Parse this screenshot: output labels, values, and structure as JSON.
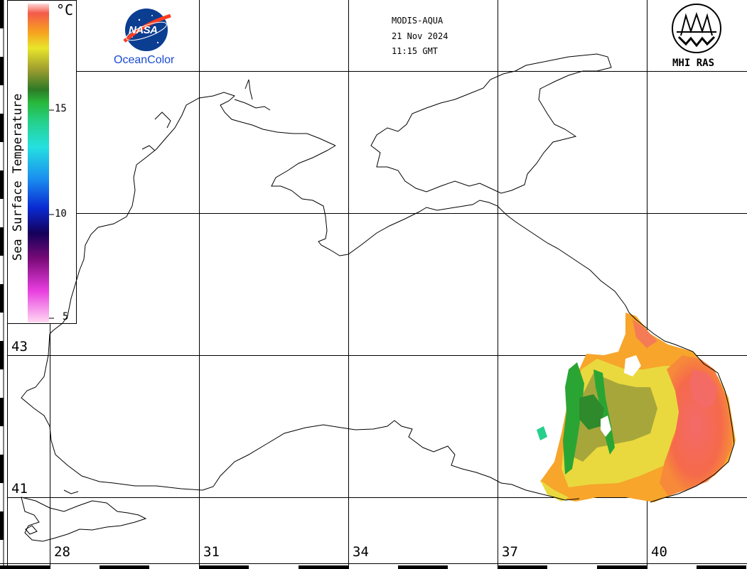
{
  "header": {
    "sensor": "MODIS-AQUA",
    "date": "21 Nov 2024",
    "time": "11:15 GMT"
  },
  "logos": {
    "nasa_word": "NASA",
    "oceancolor": "OceanColor",
    "mhi": "MHI RAS"
  },
  "colorbar": {
    "title": "Sea Surface Temperature",
    "unit": "°C",
    "ticks": [
      "15",
      "10",
      "5"
    ],
    "min": 5,
    "max": 20
  },
  "axes": {
    "latitudes": [
      "43",
      "41"
    ],
    "longitudes": [
      "28",
      "31",
      "34",
      "37",
      "40"
    ]
  },
  "colors": {
    "coast": "#000000",
    "grid": "#000000",
    "sst_warm": "#f56a4a",
    "sst_orange": "#f7a52b",
    "sst_yellow": "#e9d93e",
    "sst_olive": "#a7a63a",
    "sst_green": "#2aa534"
  }
}
